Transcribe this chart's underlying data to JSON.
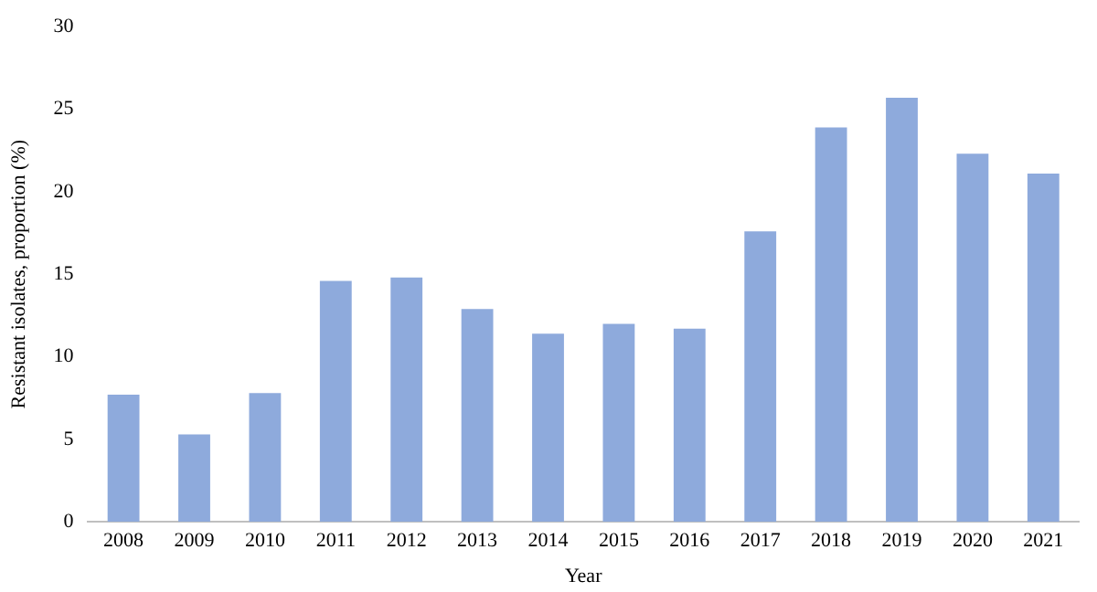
{
  "chart_data": {
    "type": "bar",
    "xlabel": "Year",
    "ylabel": "Resistant isolates, proportion (%)",
    "categories": [
      "2008",
      "2009",
      "2010",
      "2011",
      "2012",
      "2013",
      "2014",
      "2015",
      "2016",
      "2017",
      "2018",
      "2019",
      "2020",
      "2021"
    ],
    "values": [
      7.7,
      5.3,
      7.8,
      14.6,
      14.8,
      12.9,
      11.4,
      12.0,
      11.7,
      17.6,
      23.9,
      25.7,
      22.3,
      21.1
    ],
    "color": "#8eaadc",
    "ylim": [
      0,
      30
    ],
    "yticks": [
      0,
      5,
      10,
      15,
      20,
      25,
      30
    ],
    "grid": false,
    "legend": false
  }
}
